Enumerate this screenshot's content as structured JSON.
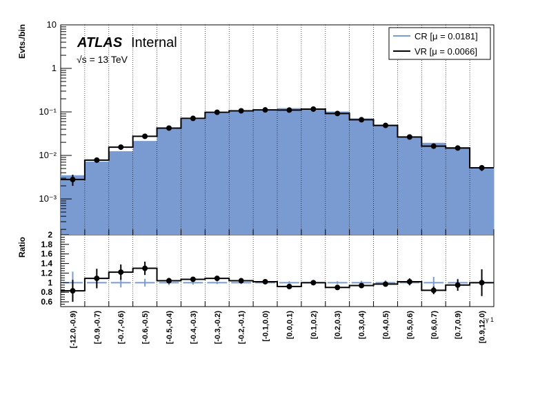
{
  "chart_data": {
    "type": "bar",
    "categories": [
      "[-12.0,-0.9)",
      "[-0.9,-0.7)",
      "[-0.7,-0.6)",
      "[-0.6,-0.5)",
      "[-0.5,-0.4)",
      "[-0.4,-0.3)",
      "[-0.3,-0.2)",
      "[-0.2,-0.1)",
      "[-0.1,0.0)",
      "[0.0,0.1)",
      "[0.1,0.2)",
      "[0.2,0.3)",
      "[0.3,0.4)",
      "[0.4,0.5)",
      "[0.5,0.6)",
      "[0.6,0.7)",
      "[0.7,0.9)",
      "[0.9,12.0)"
    ],
    "xlabel": "γ 1",
    "ylabel": "Evts./bin",
    "ratio_ylabel": "Ratio",
    "ylim": [
      0.00015,
      10
    ],
    "yscale": "log",
    "ratio_ylim": [
      0.5,
      2
    ],
    "y_tick_labels": [
      "10⁻³",
      "10⁻²",
      "10⁻¹",
      "1",
      "10"
    ],
    "ratio_tick_labels": [
      "0.6",
      "0.8",
      "1",
      "1.2",
      "1.4",
      "1.6",
      "1.8",
      "2"
    ],
    "grid": "vertical dotted",
    "legend_position": "top-right",
    "annotations": {
      "atlas": "ATLAS",
      "internal": "Internal",
      "energy": "√s = 13 TeV"
    },
    "series": [
      {
        "name": "CR [μ = 0.0181]",
        "color": "#7a9bd2",
        "style": "filled histogram",
        "values": [
          0.0035,
          0.0072,
          0.0125,
          0.0215,
          0.041,
          0.068,
          0.094,
          0.104,
          0.109,
          0.122,
          0.116,
          0.102,
          0.071,
          0.051,
          0.0265,
          0.0195,
          0.0155,
          0.0053
        ],
        "ratio_values": [
          1.0,
          1.0,
          1.0,
          1.0,
          1.0,
          1.0,
          1.0,
          1.0,
          1.0,
          1.0,
          1.0,
          1.0,
          1.0,
          1.0,
          1.0,
          1.0,
          1.0,
          1.0
        ],
        "ratio_errors": [
          0.23,
          0.13,
          0.1,
          0.08,
          0.05,
          0.04,
          0.03,
          0.03,
          0.03,
          0.03,
          0.03,
          0.03,
          0.04,
          0.05,
          0.06,
          0.12,
          0.08,
          0.12
        ]
      },
      {
        "name": "VR [μ = 0.0066]",
        "color": "#000000",
        "style": "line histogram with points",
        "values": [
          0.0028,
          0.0078,
          0.0155,
          0.0275,
          0.0425,
          0.071,
          0.098,
          0.106,
          0.111,
          0.11,
          0.116,
          0.092,
          0.066,
          0.049,
          0.0265,
          0.0163,
          0.0148,
          0.0052
        ],
        "errors": [
          0.0008,
          0.0008,
          0.0012,
          0.0018,
          0.002,
          0.0028,
          0.003,
          0.003,
          0.003,
          0.003,
          0.003,
          0.003,
          0.003,
          0.0025,
          0.002,
          0.0015,
          0.0013,
          0.0008
        ],
        "ratio_values": [
          0.83,
          1.09,
          1.22,
          1.3,
          1.04,
          1.07,
          1.09,
          1.04,
          1.02,
          0.92,
          1.0,
          0.9,
          0.94,
          0.97,
          1.02,
          0.84,
          0.95,
          1.0
        ],
        "ratio_errors": [
          0.23,
          0.2,
          0.16,
          0.14,
          0.06,
          0.05,
          0.04,
          0.03,
          0.03,
          0.03,
          0.03,
          0.03,
          0.04,
          0.05,
          0.07,
          0.08,
          0.12,
          0.28
        ]
      }
    ]
  }
}
